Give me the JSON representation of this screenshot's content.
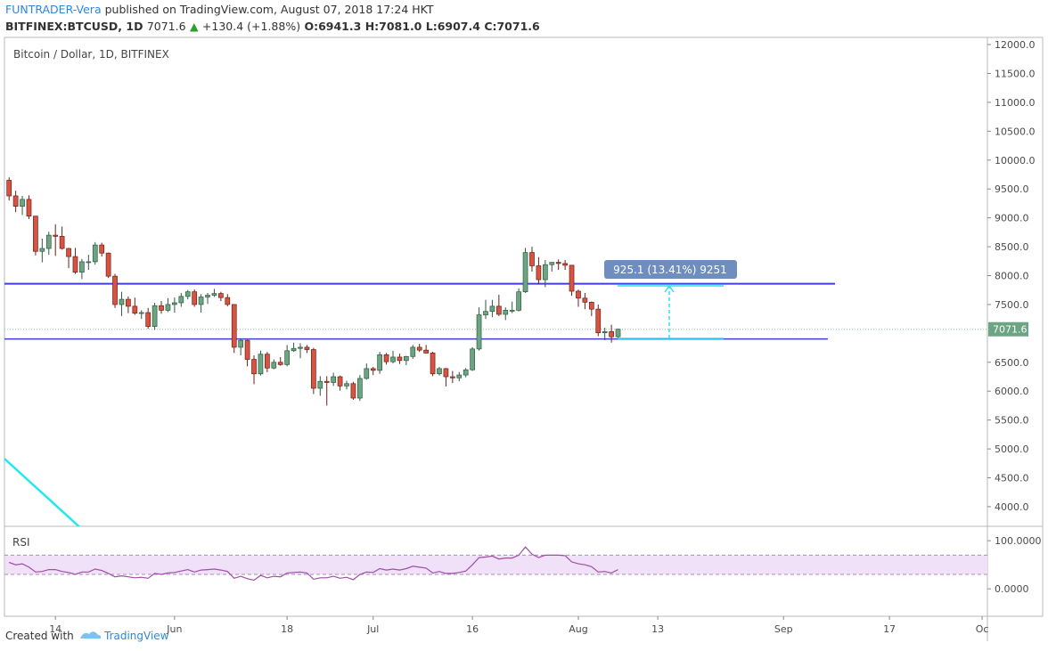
{
  "header": {
    "author": "FUNTRADER-Vera",
    "published": "published on TradingView.com, August 07, 2018 17:24 HKT",
    "symbol": "BITFINEX:BTCUSD, 1D",
    "price": "7071.6",
    "change": "+130.4 (+1.88%)",
    "open": "O:6941.3",
    "high": "H:7081.0",
    "low": "L:6907.4",
    "close": "C:7071.6"
  },
  "footer": {
    "created": "Created with",
    "brand": "TradingView"
  },
  "chart_data": {
    "type": "candlestick",
    "title": "Bitcoin / Dollar, 1D, BITFINEX",
    "up_color": "#6ba583",
    "down_color": "#d75442",
    "candles": [
      [
        9650,
        9700,
        9300,
        9380
      ],
      [
        9380,
        9470,
        9100,
        9200
      ],
      [
        9200,
        9380,
        9050,
        9320
      ],
      [
        9320,
        9390,
        8980,
        9030
      ],
      [
        9030,
        9030,
        8350,
        8420
      ],
      [
        8420,
        8640,
        8230,
        8470
      ],
      [
        8470,
        8760,
        8360,
        8700
      ],
      [
        8700,
        8890,
        8340,
        8680
      ],
      [
        8680,
        8850,
        8450,
        8470
      ],
      [
        8470,
        8480,
        8130,
        8330
      ],
      [
        8330,
        8480,
        8030,
        8060
      ],
      [
        8060,
        8290,
        7940,
        8240
      ],
      [
        8240,
        8360,
        8100,
        8240
      ],
      [
        8240,
        8580,
        8190,
        8530
      ],
      [
        8530,
        8570,
        8330,
        8390
      ],
      [
        8390,
        8400,
        7960,
        7990
      ],
      [
        7990,
        8030,
        7440,
        7500
      ],
      [
        7500,
        7720,
        7300,
        7590
      ],
      [
        7590,
        7640,
        7350,
        7470
      ],
      [
        7470,
        7620,
        7320,
        7350
      ],
      [
        7350,
        7400,
        7250,
        7360
      ],
      [
        7360,
        7440,
        7080,
        7120
      ],
      [
        7120,
        7530,
        7060,
        7480
      ],
      [
        7480,
        7560,
        7340,
        7400
      ],
      [
        7400,
        7610,
        7370,
        7500
      ],
      [
        7500,
        7620,
        7360,
        7530
      ],
      [
        7530,
        7700,
        7460,
        7640
      ],
      [
        7640,
        7750,
        7590,
        7720
      ],
      [
        7720,
        7760,
        7460,
        7500
      ],
      [
        7500,
        7680,
        7360,
        7630
      ],
      [
        7630,
        7700,
        7510,
        7660
      ],
      [
        7660,
        7770,
        7630,
        7690
      ],
      [
        7690,
        7720,
        7560,
        7620
      ],
      [
        7620,
        7680,
        7470,
        7500
      ],
      [
        7500,
        7500,
        6660,
        6760
      ],
      [
        6760,
        6910,
        6620,
        6880
      ],
      [
        6880,
        6890,
        6430,
        6550
      ],
      [
        6550,
        6620,
        6120,
        6300
      ],
      [
        6300,
        6700,
        6270,
        6640
      ],
      [
        6640,
        6680,
        6330,
        6400
      ],
      [
        6400,
        6550,
        6380,
        6500
      ],
      [
        6500,
        6590,
        6440,
        6460
      ],
      [
        6460,
        6800,
        6430,
        6700
      ],
      [
        6700,
        6840,
        6680,
        6740
      ],
      [
        6740,
        6830,
        6570,
        6760
      ],
      [
        6760,
        6800,
        6660,
        6720
      ],
      [
        6720,
        6750,
        5950,
        6050
      ],
      [
        6050,
        6260,
        5920,
        6170
      ],
      [
        6170,
        6260,
        5750,
        6150
      ],
      [
        6150,
        6320,
        6090,
        6250
      ],
      [
        6250,
        6270,
        6010,
        6090
      ],
      [
        6090,
        6180,
        6030,
        6130
      ],
      [
        6130,
        6160,
        5850,
        5880
      ],
      [
        5880,
        6280,
        5830,
        6220
      ],
      [
        6220,
        6480,
        6200,
        6390
      ],
      [
        6390,
        6420,
        6280,
        6360
      ],
      [
        6360,
        6680,
        6300,
        6630
      ],
      [
        6630,
        6660,
        6460,
        6510
      ],
      [
        6510,
        6700,
        6480,
        6590
      ],
      [
        6590,
        6650,
        6470,
        6530
      ],
      [
        6530,
        6610,
        6450,
        6600
      ],
      [
        6600,
        6800,
        6560,
        6760
      ],
      [
        6760,
        6820,
        6680,
        6710
      ],
      [
        6710,
        6800,
        6650,
        6660
      ],
      [
        6660,
        6680,
        6260,
        6300
      ],
      [
        6300,
        6420,
        6270,
        6390
      ],
      [
        6390,
        6400,
        6080,
        6250
      ],
      [
        6250,
        6350,
        6140,
        6230
      ],
      [
        6230,
        6330,
        6170,
        6280
      ],
      [
        6280,
        6400,
        6240,
        6370
      ],
      [
        6370,
        6760,
        6350,
        6730
      ],
      [
        6730,
        7450,
        6700,
        7320
      ],
      [
        7320,
        7580,
        7250,
        7380
      ],
      [
        7380,
        7580,
        7280,
        7470
      ],
      [
        7470,
        7670,
        7300,
        7330
      ],
      [
        7330,
        7450,
        7230,
        7400
      ],
      [
        7400,
        7550,
        7350,
        7400
      ],
      [
        7400,
        7780,
        7380,
        7720
      ],
      [
        7720,
        8480,
        7700,
        8400
      ],
      [
        8400,
        8500,
        8070,
        8170
      ],
      [
        8170,
        8320,
        7850,
        7930
      ],
      [
        7930,
        8270,
        7800,
        8190
      ],
      [
        8190,
        8230,
        8070,
        8230
      ],
      [
        8230,
        8280,
        8100,
        8210
      ],
      [
        8210,
        8270,
        8100,
        8180
      ],
      [
        8180,
        8180,
        7650,
        7730
      ],
      [
        7730,
        7760,
        7460,
        7610
      ],
      [
        7610,
        7700,
        7420,
        7540
      ],
      [
        7540,
        7550,
        7300,
        7420
      ],
      [
        7420,
        7500,
        6950,
        7010
      ],
      [
        7010,
        7100,
        6880,
        7030
      ],
      [
        7030,
        7150,
        6840,
        6941
      ],
      [
        6941.3,
        7081,
        6907.4,
        7071.6
      ]
    ],
    "xlim": [
      -0.7,
      147.8
    ],
    "xticks": [
      {
        "value": 7,
        "label": "14"
      },
      {
        "value": 25,
        "label": "Jun"
      },
      {
        "value": 42,
        "label": "18"
      },
      {
        "value": 55,
        "label": "Jul"
      },
      {
        "value": 70,
        "label": "16"
      },
      {
        "value": 86,
        "label": "Aug"
      },
      {
        "value": 98,
        "label": "13"
      },
      {
        "value": 117,
        "label": "Sep"
      },
      {
        "value": 133,
        "label": "17"
      },
      {
        "value": 147,
        "label": "Oc"
      }
    ],
    "ylim": [
      3660,
      12124
    ],
    "yticks": [
      {
        "value": 4000,
        "label": "4000.0"
      },
      {
        "value": 4500,
        "label": "4500.0"
      },
      {
        "value": 5000,
        "label": "5000.0"
      },
      {
        "value": 5500,
        "label": "5500.0"
      },
      {
        "value": 6000,
        "label": "6000.0"
      },
      {
        "value": 6500,
        "label": "6500.0"
      },
      {
        "value": 7500,
        "label": "7500.0"
      },
      {
        "value": 8000,
        "label": "8000.0"
      },
      {
        "value": 8500,
        "label": "8500.0"
      },
      {
        "value": 9000,
        "label": "9000.0"
      },
      {
        "value": 9500,
        "label": "9500.0"
      },
      {
        "value": 10000,
        "label": "10000.0"
      },
      {
        "value": 10500,
        "label": "10500.0"
      },
      {
        "value": 11000,
        "label": "11000.0"
      },
      {
        "value": 11500,
        "label": "11500.0"
      },
      {
        "value": 12000,
        "label": "12000.0"
      }
    ],
    "last_price": {
      "value": 7071.6,
      "label": "7071.6"
    },
    "hlines": [
      7860,
      6903
    ],
    "hline_color": "#3f3fe0",
    "measure_label": "925.1 (13.41%) 9251",
    "rsi": {
      "name": "RSI",
      "color": "#9c4fa6",
      "values": [
        55,
        50,
        52,
        45,
        35,
        36,
        40,
        40,
        36,
        34,
        30,
        35,
        35,
        41,
        38,
        32,
        25,
        27,
        25,
        23,
        24,
        22,
        32,
        30,
        33,
        34,
        37,
        40,
        35,
        39,
        40,
        41,
        39,
        36,
        22,
        26,
        21,
        18,
        28,
        23,
        26,
        25,
        33,
        34,
        35,
        33,
        20,
        23,
        23,
        26,
        22,
        24,
        19,
        30,
        35,
        34,
        42,
        39,
        41,
        39,
        42,
        47,
        45,
        43,
        33,
        36,
        32,
        32,
        34,
        37,
        50,
        65,
        66,
        68,
        62,
        64,
        64,
        70,
        87,
        72,
        65,
        70,
        70,
        70,
        69,
        56,
        52,
        50,
        46,
        35,
        36,
        33,
        40
      ],
      "ylim": [
        -57,
        128
      ],
      "band": [
        30,
        70
      ],
      "yticks": [
        {
          "value": 100,
          "label": "100.0000"
        },
        {
          "value": 0,
          "label": "0.0000"
        }
      ]
    }
  }
}
